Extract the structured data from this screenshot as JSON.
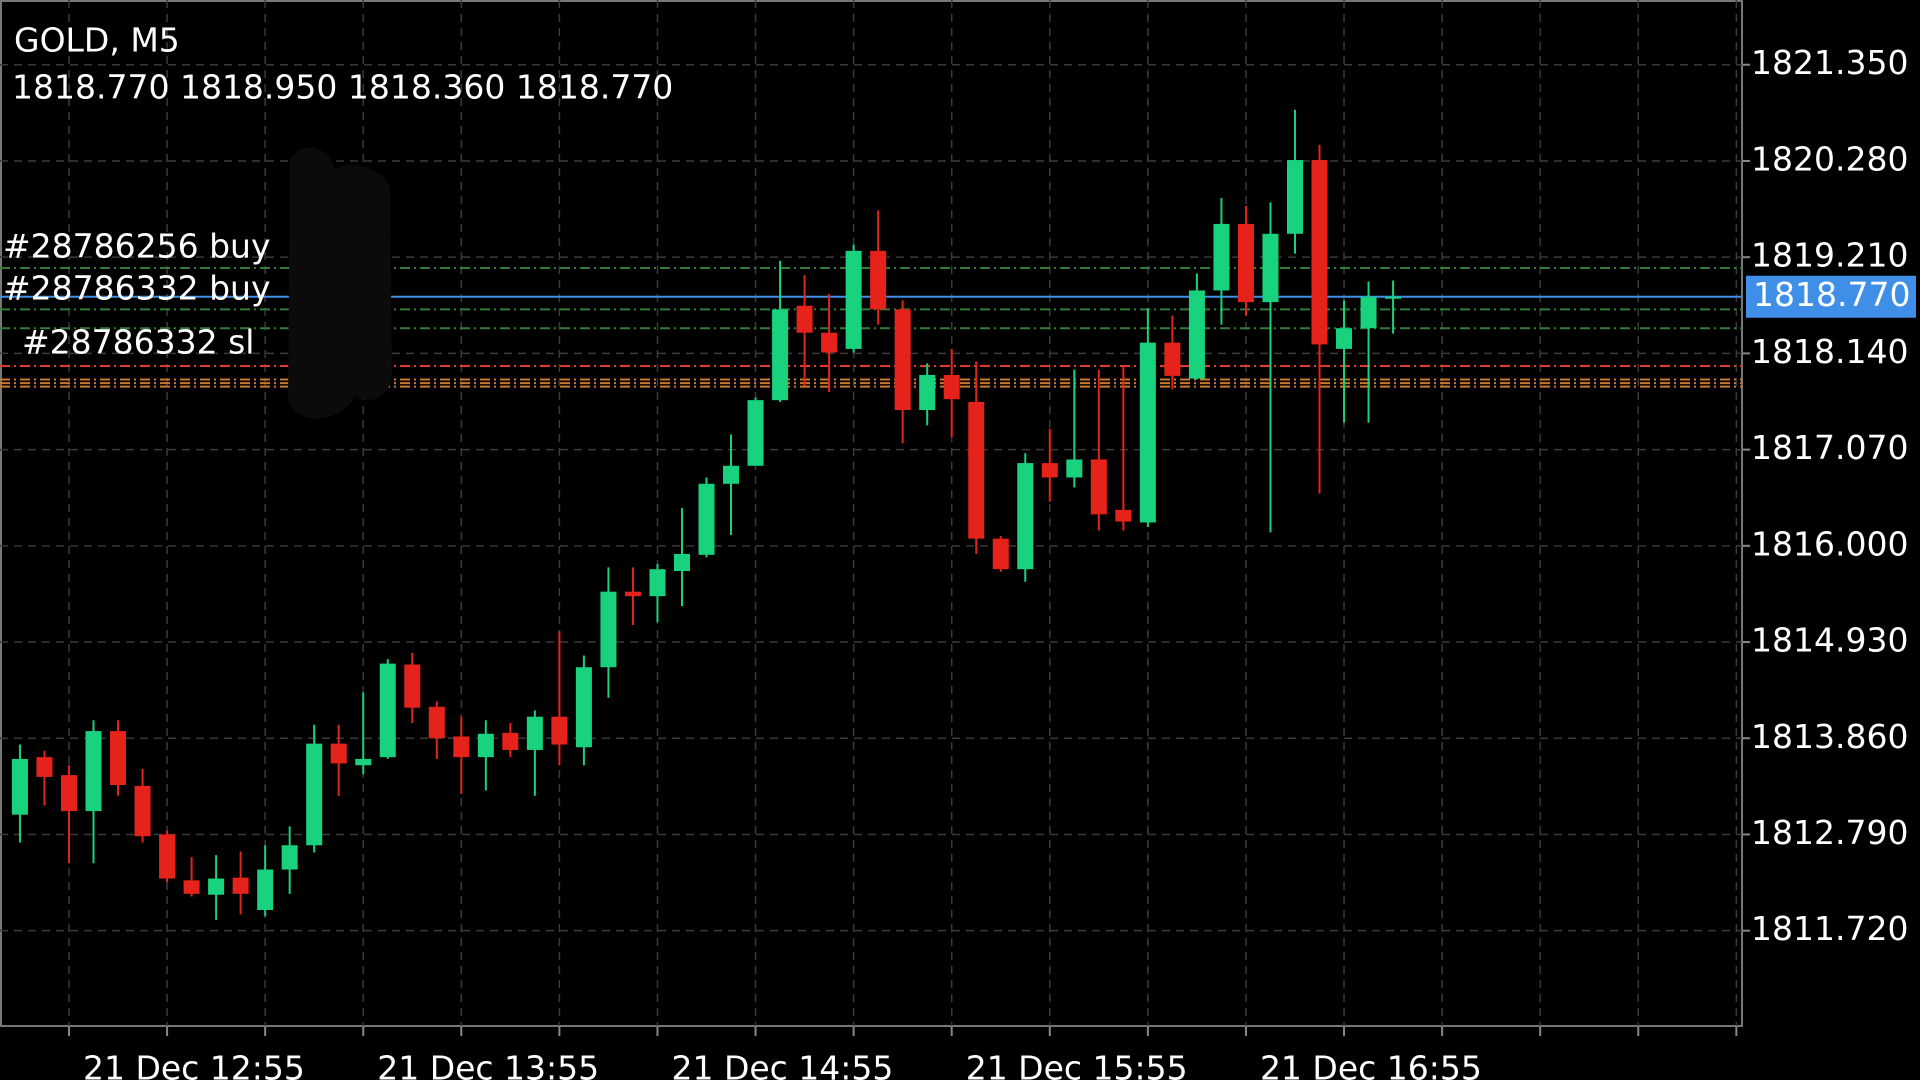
{
  "chart_data": {
    "type": "candlestick",
    "title": "GOLD, M5",
    "subtitle": "1818.770 1818.950 1818.360 1818.770",
    "categories": [
      null,
      null,
      "21 Dec 12:55",
      null,
      null,
      null,
      null,
      null,
      null,
      null,
      null,
      null,
      null,
      null,
      "21 Dec 13:55",
      null,
      null,
      null,
      null,
      null,
      null,
      null,
      null,
      null,
      null,
      null,
      "21 Dec 14:55",
      null,
      null,
      null,
      null,
      null,
      null,
      null,
      null,
      null,
      null,
      null,
      "21 Dec 15:55",
      null,
      null,
      null,
      null,
      null,
      null,
      null,
      null,
      null,
      null,
      null,
      "21 Dec 16:55",
      null,
      null,
      null,
      null,
      null,
      null
    ],
    "candles": {
      "open": [
        1813.01,
        1813.65,
        1813.45,
        1813.05,
        1813.94,
        1813.33,
        1812.79,
        1812.28,
        1812.12,
        1812.31,
        1811.95,
        1812.4,
        1812.67,
        1813.8,
        1813.56,
        1813.65,
        1814.68,
        1814.21,
        1813.88,
        1813.65,
        1813.92,
        1813.73,
        1814.1,
        1813.76,
        1814.65,
        1815.49,
        1815.44,
        1815.72,
        1815.9,
        1816.69,
        1816.89,
        1817.62,
        1818.67,
        1818.37,
        1818.19,
        1819.28,
        1818.63,
        1817.51,
        1817.9,
        1817.6,
        1816.08,
        1815.74,
        1816.92,
        1816.76,
        1816.96,
        1816.4,
        1816.26,
        1818.26,
        1817.86,
        1818.84,
        1819.58,
        1818.71,
        1819.47,
        1820.29,
        1818.19,
        1818.42,
        1818.77
      ],
      "high": [
        1813.79,
        1813.72,
        1813.56,
        1814.06,
        1814.06,
        1813.52,
        1812.83,
        1812.54,
        1812.56,
        1812.6,
        1812.67,
        1812.88,
        1814.01,
        1814.01,
        1814.37,
        1814.74,
        1814.81,
        1814.27,
        1814.1,
        1814.06,
        1814.03,
        1814.17,
        1815.05,
        1814.78,
        1815.76,
        1815.76,
        1815.8,
        1816.42,
        1816.76,
        1817.24,
        1817.65,
        1819.17,
        1819.01,
        1818.8,
        1819.35,
        1819.73,
        1818.73,
        1818.03,
        1818.19,
        1818.05,
        1816.11,
        1817.03,
        1817.3,
        1817.96,
        1817.96,
        1817.99,
        1818.64,
        1818.56,
        1819.03,
        1819.87,
        1819.78,
        1819.82,
        1820.85,
        1820.46,
        1818.73,
        1818.94,
        1818.95
      ],
      "low": [
        1812.7,
        1813.11,
        1812.47,
        1812.47,
        1813.22,
        1812.7,
        1812.26,
        1812.1,
        1811.84,
        1811.9,
        1811.88,
        1812.13,
        1812.59,
        1813.22,
        1813.46,
        1813.63,
        1814.03,
        1813.63,
        1813.24,
        1813.28,
        1813.65,
        1813.22,
        1813.56,
        1813.56,
        1814.31,
        1815.12,
        1815.15,
        1815.33,
        1815.87,
        1816.12,
        1816.89,
        1817.6,
        1817.78,
        1817.71,
        1818.15,
        1818.46,
        1817.14,
        1817.34,
        1817.21,
        1815.91,
        1815.71,
        1815.6,
        1816.49,
        1816.65,
        1816.17,
        1816.17,
        1816.21,
        1817.74,
        1817.85,
        1818.46,
        1818.56,
        1816.15,
        1819.25,
        1816.58,
        1817.37,
        1817.37,
        1818.36
      ],
      "close": [
        1813.63,
        1813.43,
        1813.05,
        1813.94,
        1813.34,
        1812.77,
        1812.3,
        1812.13,
        1812.3,
        1812.13,
        1812.4,
        1812.67,
        1813.8,
        1813.58,
        1813.63,
        1814.69,
        1814.2,
        1813.86,
        1813.65,
        1813.91,
        1813.73,
        1814.1,
        1813.79,
        1814.65,
        1815.49,
        1815.44,
        1815.74,
        1815.91,
        1816.69,
        1816.89,
        1817.62,
        1818.63,
        1818.37,
        1818.15,
        1819.28,
        1818.63,
        1817.51,
        1817.9,
        1817.63,
        1816.08,
        1815.74,
        1816.92,
        1816.76,
        1816.96,
        1816.35,
        1816.27,
        1818.26,
        1817.89,
        1818.84,
        1819.58,
        1818.71,
        1819.47,
        1820.29,
        1818.24,
        1818.42,
        1818.77,
        1818.77
      ]
    },
    "up_color": "#18d27e",
    "down_color": "#e5231b",
    "ylim": [
      1810.66,
      1822.07
    ],
    "yticks": [
      {
        "value": 1821.35,
        "label": "1821.350"
      },
      {
        "value": 1820.28,
        "label": "1820.280"
      },
      {
        "value": 1819.21,
        "label": "1819.210"
      },
      {
        "value": 1818.14,
        "label": "1818.140"
      },
      {
        "value": 1817.07,
        "label": "1817.070"
      },
      {
        "value": 1816,
        "label": "1816.000"
      },
      {
        "value": 1814.93,
        "label": "1814.930"
      },
      {
        "value": 1813.86,
        "label": "1813.860"
      },
      {
        "value": 1812.79,
        "label": "1812.790"
      },
      {
        "value": 1811.72,
        "label": "1811.720"
      }
    ],
    "grid": true,
    "last_price": {
      "value": 1818.77,
      "label": "1818.770",
      "color": "#3f8fe8"
    },
    "levels": [
      {
        "value": 1819.09,
        "color": "#2f7d36"
      },
      {
        "value": 1818.63,
        "color": "#2f7d36"
      },
      {
        "value": 1818.42,
        "color": "#2f7d36"
      },
      {
        "value": 1818.0,
        "color": "#e23a2a"
      },
      {
        "value": 1817.85,
        "color": "#c9782a"
      },
      {
        "value": 1817.81,
        "color": "#c9782a"
      },
      {
        "value": 1817.77,
        "color": "#c9782a"
      }
    ],
    "order_labels": [
      "#28786256 buy",
      "#28786332 buy",
      "#28786332 sl"
    ]
  }
}
